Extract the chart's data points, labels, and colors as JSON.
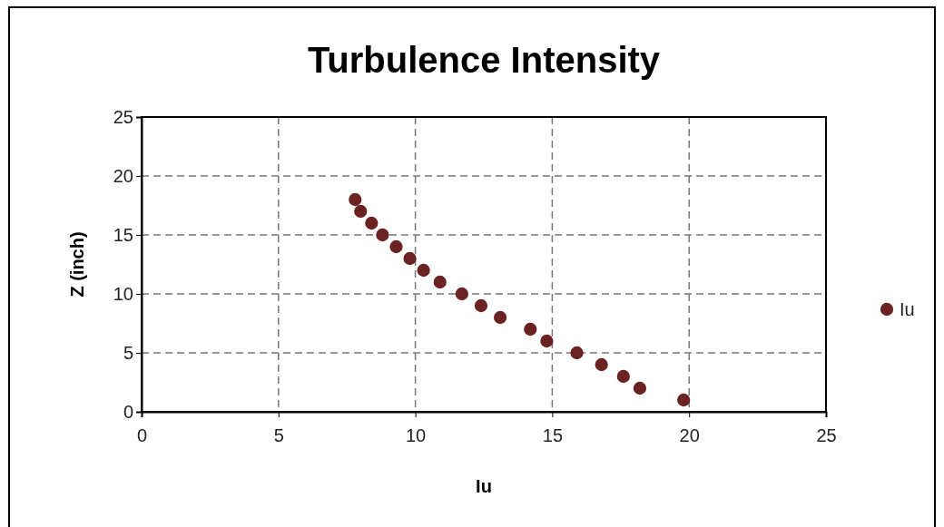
{
  "chart_data": {
    "type": "scatter",
    "title": "Turbulence Intensity",
    "xlabel": "Iu",
    "ylabel": "Z (inch)",
    "x": [
      7.8,
      8.0,
      8.4,
      8.8,
      9.3,
      9.8,
      10.3,
      10.9,
      11.7,
      12.4,
      13.1,
      14.2,
      14.8,
      15.9,
      16.8,
      17.6,
      18.2,
      19.8
    ],
    "series": [
      {
        "name": "Iu",
        "color": "#6b2222",
        "values": [
          18,
          17,
          16,
          15,
          14,
          13,
          12,
          11,
          10,
          9,
          8,
          7,
          6,
          5,
          4,
          3,
          2,
          1
        ]
      }
    ],
    "xlim": [
      0,
      25
    ],
    "xticks": [
      0,
      5,
      10,
      15,
      20,
      25
    ],
    "ylim": [
      0,
      25
    ],
    "yticks": [
      0,
      5,
      10,
      15,
      20,
      25
    ],
    "grid": true,
    "legend": "right",
    "marker": "circle",
    "line_style": "dashed"
  }
}
